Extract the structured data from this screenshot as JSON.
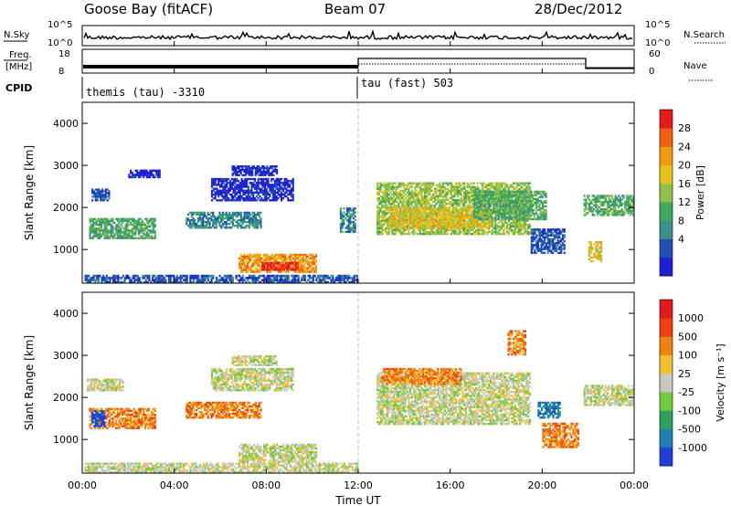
{
  "header": {
    "station": "Goose Bay (fitACF)",
    "beam": "Beam 07",
    "date": "28/Dec/2012"
  },
  "top_panels": {
    "nsky": {
      "label": "N.Sky",
      "ticks": [
        "10^5",
        "10^0"
      ]
    },
    "nsearch": {
      "label": "N.Search",
      "ticks": [
        "10^5",
        "10^0"
      ]
    },
    "freq": {
      "label_line1": "Freq.",
      "label_line2": "[MHz]",
      "ticks": [
        "18",
        "8"
      ]
    },
    "nave": {
      "label": "Nave",
      "ticks": [
        "60",
        "0"
      ]
    },
    "cpid": {
      "label": "CPID",
      "modes": [
        {
          "text": "themis (tau) -3310",
          "start_hour": 0
        },
        {
          "text": "tau (fast) 503",
          "start_hour": 12
        }
      ]
    }
  },
  "chart_data": [
    {
      "type": "heatmap",
      "name": "power",
      "ylabel": "Slant Range [km]",
      "xlim": [
        0,
        24
      ],
      "ylim": [
        200,
        4500
      ],
      "yticks": [
        "1000",
        "2000",
        "3000",
        "4000"
      ],
      "colorbar": {
        "label": "Power [dB]",
        "ticks": [
          "28",
          "24",
          "20",
          "16",
          "12",
          "8",
          "4"
        ],
        "colors": [
          "#1f1fd6",
          "#2050b4",
          "#3a8f8f",
          "#3fa85c",
          "#8fc04a",
          "#e6c21a",
          "#f09a10",
          "#f06010",
          "#e61a1a"
        ]
      },
      "regions": [
        {
          "h0": 0.1,
          "h1": 12.0,
          "r0": 200,
          "r1": 400,
          "level": 1
        },
        {
          "h0": 6.8,
          "h1": 10.2,
          "r0": 450,
          "r1": 900,
          "level": 6
        },
        {
          "h0": 7.8,
          "h1": 9.4,
          "r0": 500,
          "r1": 700,
          "level": 8
        },
        {
          "h0": 0.3,
          "h1": 3.2,
          "r0": 1250,
          "r1": 1750,
          "level": 3
        },
        {
          "h0": 0.4,
          "h1": 1.2,
          "r0": 2150,
          "r1": 2450,
          "level": 1
        },
        {
          "h0": 2.0,
          "h1": 3.4,
          "r0": 2700,
          "r1": 2900,
          "level": 0
        },
        {
          "h0": 4.5,
          "h1": 7.8,
          "r0": 1500,
          "r1": 1900,
          "level": 2
        },
        {
          "h0": 5.6,
          "h1": 9.2,
          "r0": 2150,
          "r1": 2700,
          "level": 0
        },
        {
          "h0": 6.5,
          "h1": 8.5,
          "r0": 2750,
          "r1": 3000,
          "level": 0
        },
        {
          "h0": 11.2,
          "h1": 11.9,
          "r0": 1400,
          "r1": 2000,
          "level": 2
        },
        {
          "h0": 12.8,
          "h1": 19.5,
          "r0": 1350,
          "r1": 2600,
          "level": 4
        },
        {
          "h0": 13.3,
          "h1": 17.8,
          "r0": 1500,
          "r1": 2000,
          "level": 5
        },
        {
          "h0": 17.0,
          "h1": 20.2,
          "r0": 1700,
          "r1": 2400,
          "level": 3
        },
        {
          "h0": 19.5,
          "h1": 21.0,
          "r0": 900,
          "r1": 1500,
          "level": 1
        },
        {
          "h0": 21.8,
          "h1": 24.0,
          "r0": 1800,
          "r1": 2300,
          "level": 3
        },
        {
          "h0": 22.0,
          "h1": 22.6,
          "r0": 700,
          "r1": 1200,
          "level": 5
        }
      ]
    },
    {
      "type": "heatmap",
      "name": "velocity",
      "ylabel": "Slant Range [km]",
      "xlabel": "Time UT",
      "xlim": [
        0,
        24
      ],
      "ylim": [
        200,
        4500
      ],
      "xticks": [
        "00:00",
        "04:00",
        "08:00",
        "12:00",
        "16:00",
        "20:00",
        "00:00"
      ],
      "yticks": [
        "1000",
        "2000",
        "3000",
        "4000"
      ],
      "colorbar": {
        "label": "Velocity [m s⁻¹]",
        "ticks": [
          "1000",
          "500",
          "100",
          "25",
          "-25",
          "-100",
          "-500",
          "-1000"
        ],
        "colors": [
          "#1f3fd6",
          "#1f7fb4",
          "#2fa05a",
          "#6ccc3c",
          "#c8c8c0",
          "#f0c030",
          "#f08010",
          "#f04010",
          "#e01a1a"
        ]
      },
      "regions": [
        {
          "h0": 0.1,
          "h1": 12.0,
          "r0": 200,
          "r1": 450,
          "level": 4
        },
        {
          "h0": 6.8,
          "h1": 10.2,
          "r0": 450,
          "r1": 900,
          "level": 4
        },
        {
          "h0": 0.3,
          "h1": 3.2,
          "r0": 1250,
          "r1": 1750,
          "level": 6
        },
        {
          "h0": 0.4,
          "h1": 1.0,
          "r0": 1300,
          "r1": 1700,
          "level": 0
        },
        {
          "h0": 0.2,
          "h1": 1.8,
          "r0": 2150,
          "r1": 2450,
          "level": 4
        },
        {
          "h0": 4.5,
          "h1": 7.8,
          "r0": 1500,
          "r1": 1900,
          "level": 6
        },
        {
          "h0": 5.6,
          "h1": 9.2,
          "r0": 2150,
          "r1": 2700,
          "level": 4
        },
        {
          "h0": 6.5,
          "h1": 8.5,
          "r0": 2750,
          "r1": 3000,
          "level": 4
        },
        {
          "h0": 12.8,
          "h1": 19.5,
          "r0": 1350,
          "r1": 2600,
          "level": 4
        },
        {
          "h0": 13.0,
          "h1": 16.5,
          "r0": 2300,
          "r1": 2700,
          "level": 6
        },
        {
          "h0": 19.8,
          "h1": 20.8,
          "r0": 1500,
          "r1": 1900,
          "level": 1
        },
        {
          "h0": 20.0,
          "h1": 21.6,
          "r0": 800,
          "r1": 1400,
          "level": 6
        },
        {
          "h0": 21.8,
          "h1": 24.0,
          "r0": 1800,
          "r1": 2300,
          "level": 4
        },
        {
          "h0": 18.5,
          "h1": 19.3,
          "r0": 3000,
          "r1": 3600,
          "level": 6
        }
      ]
    }
  ]
}
